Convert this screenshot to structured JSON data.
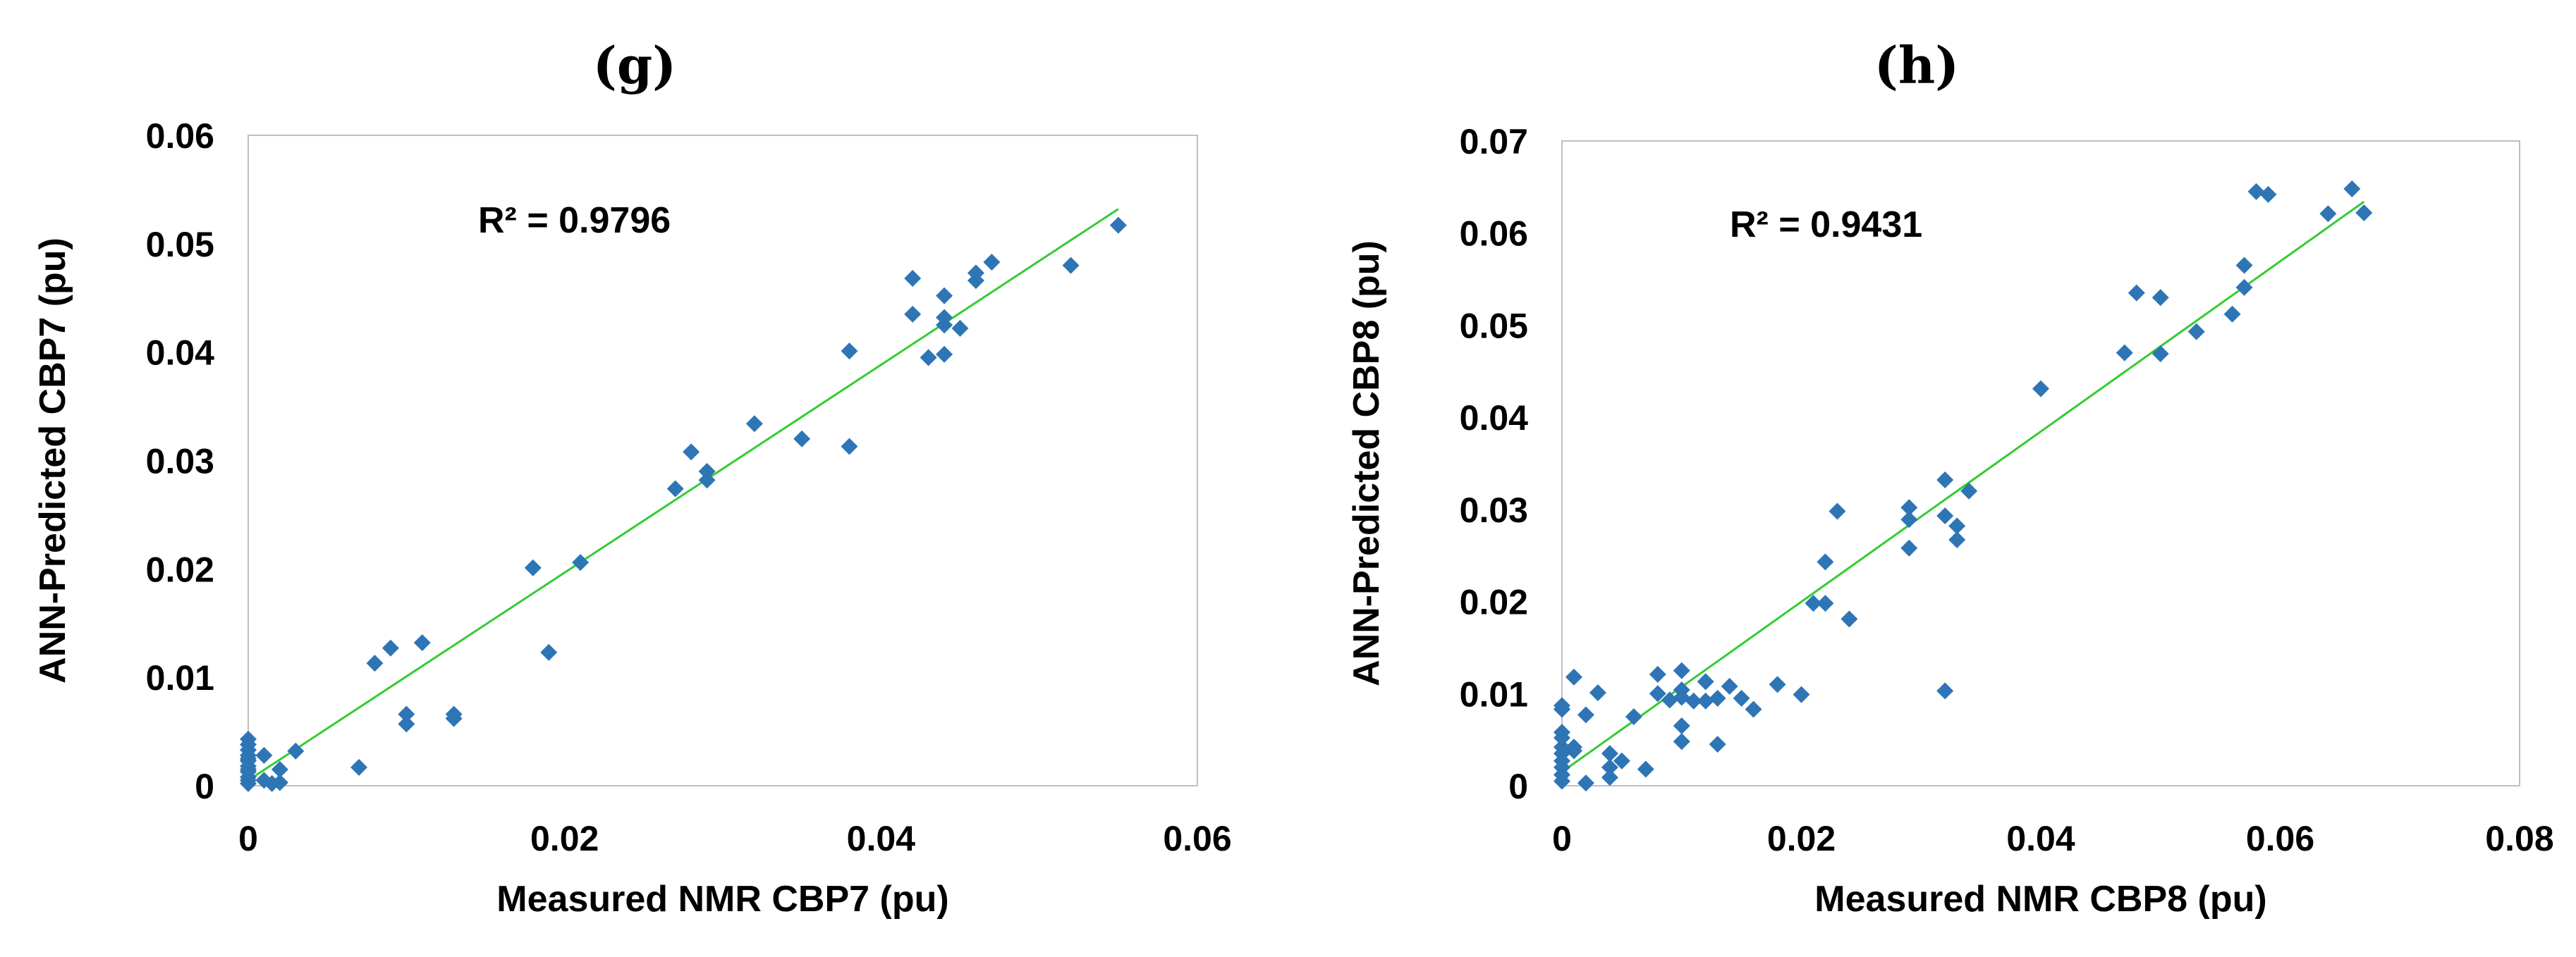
{
  "chart_data": [
    {
      "type": "scatter",
      "panel_label": "(g)",
      "xlabel": "Measured NMR CBP7 (pu)",
      "ylabel": "ANN-Predicted CBP7 (pu)",
      "annotation": "R² = 0.9796",
      "xlim": [
        0,
        0.06
      ],
      "ylim": [
        0,
        0.06
      ],
      "xticks": [
        0,
        0.02,
        0.04,
        0.06
      ],
      "xtick_labels": [
        "0",
        "0.02",
        "0.04",
        "0.06"
      ],
      "yticks": [
        0,
        0.01,
        0.02,
        0.03,
        0.04,
        0.05,
        0.06
      ],
      "ytick_labels": [
        "0",
        "0.01",
        "0.02",
        "0.03",
        "0.04",
        "0.05",
        "0.06"
      ],
      "marker_color": "#2e75b6",
      "trendline_color": "#33cc33",
      "trendline": [
        [
          0,
          0.0005
        ],
        [
          0.055,
          0.0532
        ]
      ],
      "points": [
        [
          0,
          0.0002
        ],
        [
          0,
          0.0008
        ],
        [
          0,
          0.0013
        ],
        [
          0,
          0.0018
        ],
        [
          0,
          0.0023
        ],
        [
          0,
          0.0028
        ],
        [
          0,
          0.0033
        ],
        [
          0,
          0.0038
        ],
        [
          0,
          0.0043
        ],
        [
          0,
          0.0005
        ],
        [
          0,
          0.0015
        ],
        [
          0,
          0.0025
        ],
        [
          0.001,
          0.0028
        ],
        [
          0.001,
          0.0005
        ],
        [
          0.0015,
          0.0002
        ],
        [
          0.002,
          0.0015
        ],
        [
          0.002,
          0.0003
        ],
        [
          0.003,
          0.0032
        ],
        [
          0.007,
          0.0017
        ],
        [
          0.008,
          0.0113
        ],
        [
          0.009,
          0.0127
        ],
        [
          0.01,
          0.0066
        ],
        [
          0.01,
          0.0057
        ],
        [
          0.011,
          0.0132
        ],
        [
          0.013,
          0.0066
        ],
        [
          0.013,
          0.0062
        ],
        [
          0.018,
          0.0201
        ],
        [
          0.019,
          0.0123
        ],
        [
          0.021,
          0.0206
        ],
        [
          0.027,
          0.0274
        ],
        [
          0.028,
          0.0308
        ],
        [
          0.029,
          0.029
        ],
        [
          0.029,
          0.0282
        ],
        [
          0.032,
          0.0334
        ],
        [
          0.035,
          0.032
        ],
        [
          0.038,
          0.0401
        ],
        [
          0.038,
          0.0313
        ],
        [
          0.042,
          0.0468
        ],
        [
          0.042,
          0.0435
        ],
        [
          0.043,
          0.0395
        ],
        [
          0.044,
          0.0452
        ],
        [
          0.044,
          0.0432
        ],
        [
          0.044,
          0.0425
        ],
        [
          0.044,
          0.0398
        ],
        [
          0.045,
          0.0422
        ],
        [
          0.046,
          0.0473
        ],
        [
          0.046,
          0.0466
        ],
        [
          0.047,
          0.0483
        ],
        [
          0.052,
          0.048
        ],
        [
          0.055,
          0.0517
        ]
      ]
    },
    {
      "type": "scatter",
      "panel_label": "(h)",
      "xlabel": "Measured NMR CBP8 (pu)",
      "ylabel": "ANN-Predicted CBP8 (pu)",
      "annotation": "R² = 0.9431",
      "xlim": [
        0,
        0.08
      ],
      "ylim": [
        0,
        0.07
      ],
      "xticks": [
        0,
        0.02,
        0.04,
        0.06,
        0.08
      ],
      "xtick_labels": [
        "0",
        "0.02",
        "0.04",
        "0.06",
        "0.08"
      ],
      "yticks": [
        0,
        0.01,
        0.02,
        0.03,
        0.04,
        0.05,
        0.06,
        0.07
      ],
      "ytick_labels": [
        "0",
        "0.01",
        "0.02",
        "0.03",
        "0.04",
        "0.05",
        "0.06",
        "0.07"
      ],
      "marker_color": "#2e75b6",
      "trendline_color": "#33cc33",
      "trendline": [
        [
          0,
          0.0015
        ],
        [
          0.067,
          0.0634
        ]
      ],
      "points": [
        [
          0,
          0.0087
        ],
        [
          0,
          0.0083
        ],
        [
          0,
          0.0058
        ],
        [
          0,
          0.0052
        ],
        [
          0,
          0.0042
        ],
        [
          0,
          0.0035
        ],
        [
          0,
          0.0027
        ],
        [
          0,
          0.002
        ],
        [
          0,
          0.0012
        ],
        [
          0,
          0.0005
        ],
        [
          0.001,
          0.0118
        ],
        [
          0.001,
          0.0042
        ],
        [
          0.001,
          0.0038
        ],
        [
          0.002,
          0.0077
        ],
        [
          0.002,
          0.0003
        ],
        [
          0.003,
          0.0101
        ],
        [
          0.004,
          0.0035
        ],
        [
          0.004,
          0.002
        ],
        [
          0.004,
          0.0009
        ],
        [
          0.005,
          0.0027
        ],
        [
          0.006,
          0.0075
        ],
        [
          0.007,
          0.0018
        ],
        [
          0.008,
          0.0121
        ],
        [
          0.008,
          0.01
        ],
        [
          0.009,
          0.0093
        ],
        [
          0.01,
          0.0125
        ],
        [
          0.01,
          0.0104
        ],
        [
          0.01,
          0.0096
        ],
        [
          0.01,
          0.0065
        ],
        [
          0.01,
          0.0048
        ],
        [
          0.011,
          0.0092
        ],
        [
          0.012,
          0.0113
        ],
        [
          0.012,
          0.0092
        ],
        [
          0.013,
          0.0095
        ],
        [
          0.013,
          0.0045
        ],
        [
          0.014,
          0.0108
        ],
        [
          0.015,
          0.0095
        ],
        [
          0.016,
          0.0083
        ],
        [
          0.018,
          0.011
        ],
        [
          0.02,
          0.0099
        ],
        [
          0.021,
          0.0198
        ],
        [
          0.022,
          0.0243
        ],
        [
          0.022,
          0.0198
        ],
        [
          0.023,
          0.0298
        ],
        [
          0.024,
          0.0181
        ],
        [
          0.029,
          0.0302
        ],
        [
          0.029,
          0.0289
        ],
        [
          0.029,
          0.0258
        ],
        [
          0.032,
          0.0332
        ],
        [
          0.032,
          0.0293
        ],
        [
          0.032,
          0.0103
        ],
        [
          0.033,
          0.0282
        ],
        [
          0.033,
          0.0267
        ],
        [
          0.034,
          0.032
        ],
        [
          0.04,
          0.0431
        ],
        [
          0.047,
          0.047
        ],
        [
          0.048,
          0.0535
        ],
        [
          0.05,
          0.053
        ],
        [
          0.05,
          0.0469
        ],
        [
          0.053,
          0.0493
        ],
        [
          0.056,
          0.0512
        ],
        [
          0.057,
          0.0565
        ],
        [
          0.057,
          0.0541
        ],
        [
          0.058,
          0.0645
        ],
        [
          0.059,
          0.0642
        ],
        [
          0.064,
          0.0621
        ],
        [
          0.066,
          0.0648
        ],
        [
          0.067,
          0.0622
        ]
      ]
    }
  ]
}
